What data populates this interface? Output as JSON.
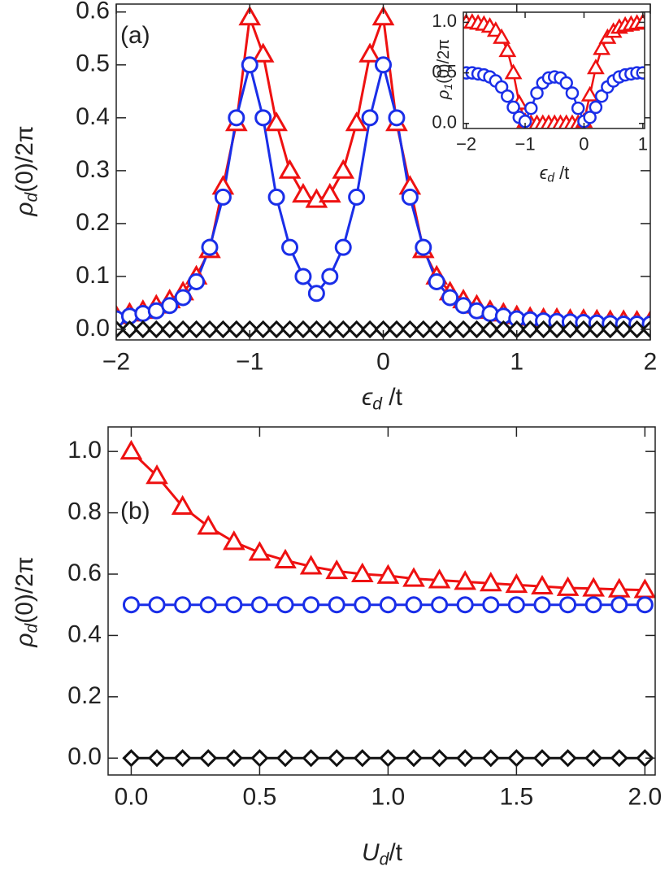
{
  "chart_data": [
    {
      "type": "line",
      "annotation": "(a)",
      "xlabel": {
        "base": "ϵ",
        "sub": "d",
        "rest": " /t"
      },
      "ylabel": {
        "base": "ρ",
        "sub": "d",
        "rest": "(0)/2π"
      },
      "xlim": [
        -2,
        2
      ],
      "ylim": [
        -0.02,
        0.615
      ],
      "xticks": [
        {
          "value": -2,
          "label": "−2"
        },
        {
          "value": -1,
          "label": "−1"
        },
        0,
        1,
        2
      ],
      "yticks": [
        {
          "value": 0,
          "label": "0.0"
        },
        0.1,
        0.2,
        0.3,
        0.4,
        0.5,
        0.6
      ],
      "x": [
        -2.0,
        -1.9,
        -1.8,
        -1.7,
        -1.6,
        -1.5,
        -1.4,
        -1.3,
        -1.2,
        -1.1,
        -1.0,
        -0.9,
        -0.8,
        -0.7,
        -0.6,
        -0.5,
        -0.4,
        -0.3,
        -0.2,
        -0.1,
        0.0,
        0.1,
        0.2,
        0.3,
        0.4,
        0.5,
        0.6,
        0.7,
        0.8,
        0.9,
        1.0,
        1.1,
        1.2,
        1.3,
        1.4,
        1.5,
        1.6,
        1.7,
        1.8,
        1.9,
        2.0
      ],
      "series": [
        {
          "color": "#ee1111",
          "marker": "triangle",
          "values": [
            0.025,
            0.03,
            0.035,
            0.045,
            0.055,
            0.07,
            0.1,
            0.15,
            0.27,
            0.39,
            0.59,
            0.52,
            0.39,
            0.3,
            0.255,
            0.245,
            0.255,
            0.3,
            0.39,
            0.52,
            0.59,
            0.39,
            0.27,
            0.15,
            0.1,
            0.07,
            0.055,
            0.045,
            0.035,
            0.03,
            0.025,
            0.022,
            0.02,
            0.02,
            0.018,
            0.018,
            0.017,
            0.016,
            0.016,
            0.015,
            0.015
          ]
        },
        {
          "color": "#1a2ee8",
          "marker": "circle",
          "values": [
            0.02,
            0.025,
            0.03,
            0.035,
            0.045,
            0.06,
            0.09,
            0.155,
            0.25,
            0.4,
            0.5,
            0.4,
            0.25,
            0.155,
            0.1,
            0.068,
            0.1,
            0.155,
            0.25,
            0.4,
            0.5,
            0.4,
            0.25,
            0.155,
            0.09,
            0.06,
            0.045,
            0.035,
            0.03,
            0.025,
            0.02,
            0.018,
            0.016,
            0.015,
            0.014,
            0.013,
            0.012,
            0.011,
            0.01,
            0.01,
            0.01
          ]
        },
        {
          "color": "#111111",
          "marker": "diamond",
          "values": [
            0,
            0,
            0,
            0,
            0,
            0,
            0,
            0,
            0,
            0,
            0,
            0,
            0,
            0,
            0,
            0,
            0,
            0,
            0,
            0,
            0,
            0,
            0,
            0,
            0,
            0,
            0,
            0,
            0,
            0,
            0,
            0,
            0,
            0,
            0,
            0,
            0,
            0,
            0,
            0,
            0
          ]
        }
      ]
    },
    {
      "type": "line",
      "xlabel": {
        "base": "ϵ",
        "sub": "d",
        "rest": " /t"
      },
      "ylabel": {
        "base": "ρ",
        "sub": "1",
        "rest": "(0)/2π"
      },
      "xlim": [
        -2.05,
        1.03
      ],
      "ylim": [
        -0.05,
        1.1
      ],
      "xticks": [
        {
          "value": -2,
          "label": "−2"
        },
        {
          "value": -1,
          "label": "−1"
        },
        0,
        1
      ],
      "yticks": [
        {
          "value": 0,
          "label": "0.0"
        },
        0.5,
        {
          "value": 1,
          "label": "1.0"
        }
      ],
      "x": [
        -2.0,
        -1.9,
        -1.8,
        -1.7,
        -1.6,
        -1.5,
        -1.4,
        -1.3,
        -1.2,
        -1.1,
        -1.0,
        -0.9,
        -0.8,
        -0.7,
        -0.6,
        -0.5,
        -0.4,
        -0.3,
        -0.2,
        -0.1,
        0.0,
        0.1,
        0.2,
        0.3,
        0.4,
        0.5,
        0.6,
        0.7,
        0.8,
        0.9,
        1.0
      ],
      "series": [
        {
          "color": "#ee1111",
          "marker": "triangle",
          "values": [
            1.0,
            1.0,
            0.99,
            0.98,
            0.96,
            0.92,
            0.85,
            0.72,
            0.5,
            0.2,
            0.02,
            0,
            0,
            0,
            0,
            0,
            0,
            0,
            0,
            0,
            0.02,
            0.28,
            0.55,
            0.74,
            0.85,
            0.91,
            0.95,
            0.97,
            0.98,
            0.99,
            1.0
          ]
        },
        {
          "color": "#1a2ee8",
          "marker": "circle",
          "values": [
            0.5,
            0.5,
            0.49,
            0.48,
            0.46,
            0.42,
            0.36,
            0.27,
            0.16,
            0.06,
            0.02,
            0.15,
            0.3,
            0.4,
            0.45,
            0.46,
            0.45,
            0.4,
            0.3,
            0.15,
            0.02,
            0.06,
            0.16,
            0.27,
            0.36,
            0.42,
            0.46,
            0.48,
            0.49,
            0.5,
            0.5
          ]
        }
      ]
    },
    {
      "type": "line",
      "annotation": "(b)",
      "xlabel": {
        "base": "U",
        "sub": "d",
        "rest": "/t"
      },
      "ylabel": {
        "base": "ρ",
        "sub": "d",
        "rest": "(0)/2π"
      },
      "xlim": [
        -0.09,
        2.04
      ],
      "ylim": [
        -0.055,
        1.08
      ],
      "xticks": [
        {
          "value": 0,
          "label": "0.0"
        },
        0.5,
        {
          "value": 1,
          "label": "1.0"
        },
        1.5,
        {
          "value": 2,
          "label": "2.0"
        }
      ],
      "yticks": [
        {
          "value": 0,
          "label": "0.0"
        },
        0.2,
        0.4,
        0.6,
        0.8,
        {
          "value": 1,
          "label": "1.0"
        }
      ],
      "x": [
        0.0,
        0.1,
        0.2,
        0.3,
        0.4,
        0.5,
        0.6,
        0.7,
        0.8,
        0.9,
        1.0,
        1.1,
        1.2,
        1.3,
        1.4,
        1.5,
        1.6,
        1.7,
        1.8,
        1.9,
        2.0
      ],
      "series": [
        {
          "color": "#ee1111",
          "marker": "triangle",
          "values": [
            1.0,
            0.92,
            0.82,
            0.755,
            0.705,
            0.67,
            0.645,
            0.625,
            0.61,
            0.6,
            0.595,
            0.585,
            0.58,
            0.575,
            0.57,
            0.565,
            0.56,
            0.555,
            0.553,
            0.55,
            0.548
          ]
        },
        {
          "color": "#1a2ee8",
          "marker": "circle",
          "values": [
            0.5,
            0.5,
            0.5,
            0.5,
            0.5,
            0.5,
            0.5,
            0.5,
            0.5,
            0.5,
            0.5,
            0.5,
            0.5,
            0.5,
            0.5,
            0.5,
            0.5,
            0.5,
            0.5,
            0.5,
            0.5
          ]
        },
        {
          "color": "#111111",
          "marker": "diamond",
          "values": [
            0,
            0,
            0,
            0,
            0,
            0,
            0,
            0,
            0,
            0,
            0,
            0,
            0,
            0,
            0,
            0,
            0,
            0,
            0,
            0,
            0
          ]
        }
      ]
    }
  ]
}
